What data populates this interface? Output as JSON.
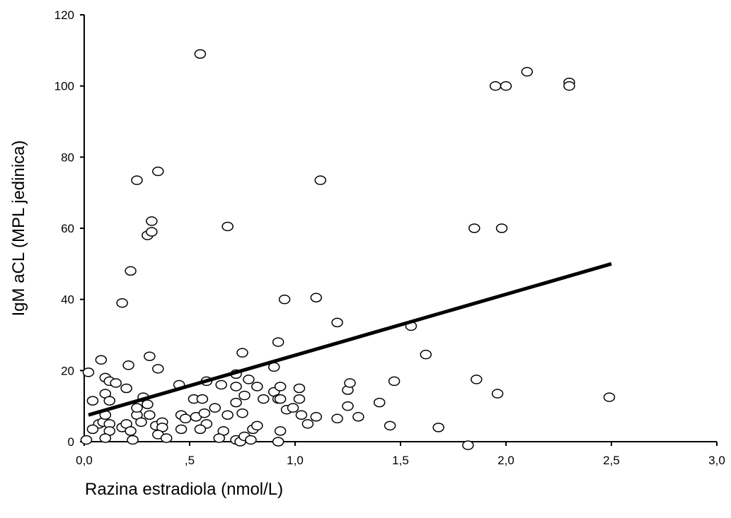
{
  "chart_data": {
    "type": "scatter",
    "title": "",
    "xlabel": "Razina estradiola (nmol/L)",
    "ylabel": "IgM aCL (MPL jedinica)",
    "xlim": [
      0,
      3
    ],
    "ylim": [
      0,
      120
    ],
    "grid": false,
    "x_ticks": [
      {
        "value": 0,
        "label": "0,0"
      },
      {
        "value": 0.5,
        "label": ",5"
      },
      {
        "value": 1.0,
        "label": "1,0"
      },
      {
        "value": 1.5,
        "label": "1,5"
      },
      {
        "value": 2.0,
        "label": "2,0"
      },
      {
        "value": 2.5,
        "label": "2,5"
      },
      {
        "value": 3.0,
        "label": "3,0"
      }
    ],
    "y_ticks": [
      {
        "value": 0,
        "label": "0"
      },
      {
        "value": 20,
        "label": "20"
      },
      {
        "value": 40,
        "label": "40"
      },
      {
        "value": 60,
        "label": "60"
      },
      {
        "value": 80,
        "label": "80"
      },
      {
        "value": 100,
        "label": "100"
      },
      {
        "value": 120,
        "label": "120"
      }
    ],
    "fit_line": {
      "x": [
        0.02,
        2.5
      ],
      "y": [
        7.5,
        50
      ]
    },
    "points": [
      [
        0.55,
        109
      ],
      [
        2.1,
        104
      ],
      [
        2.3,
        101
      ],
      [
        2.3,
        100
      ],
      [
        1.95,
        100
      ],
      [
        2.0,
        100
      ],
      [
        0.25,
        73.5
      ],
      [
        0.35,
        76
      ],
      [
        1.12,
        73.5
      ],
      [
        0.3,
        58
      ],
      [
        0.32,
        59
      ],
      [
        0.32,
        62
      ],
      [
        0.68,
        60.5
      ],
      [
        1.85,
        60
      ],
      [
        1.98,
        60
      ],
      [
        0.22,
        48
      ],
      [
        0.18,
        39
      ],
      [
        0.95,
        40
      ],
      [
        1.1,
        40.5
      ],
      [
        1.2,
        33.5
      ],
      [
        1.55,
        32.5
      ],
      [
        0.92,
        28
      ],
      [
        0.75,
        25
      ],
      [
        1.62,
        24.5
      ],
      [
        0.08,
        23
      ],
      [
        0.31,
        24
      ],
      [
        0.21,
        21.5
      ],
      [
        0.35,
        20.5
      ],
      [
        0.9,
        21
      ],
      [
        0.02,
        19.5
      ],
      [
        0.72,
        19
      ],
      [
        0.1,
        18
      ],
      [
        0.12,
        17
      ],
      [
        0.15,
        16.5
      ],
      [
        0.2,
        15
      ],
      [
        0.1,
        13.5
      ],
      [
        0.04,
        11.5
      ],
      [
        0.12,
        11.5
      ],
      [
        0.28,
        12.5
      ],
      [
        0.3,
        10.5
      ],
      [
        0.45,
        16
      ],
      [
        0.52,
        12
      ],
      [
        0.56,
        12
      ],
      [
        0.58,
        17
      ],
      [
        0.65,
        16
      ],
      [
        0.72,
        15.5
      ],
      [
        0.78,
        17.5
      ],
      [
        0.82,
        15.5
      ],
      [
        0.85,
        12
      ],
      [
        0.9,
        14
      ],
      [
        0.92,
        12
      ],
      [
        0.93,
        15.5
      ],
      [
        0.93,
        12
      ],
      [
        1.02,
        15
      ],
      [
        1.02,
        12
      ],
      [
        1.25,
        14.5
      ],
      [
        1.26,
        16.5
      ],
      [
        1.47,
        17
      ],
      [
        1.86,
        17.5
      ],
      [
        1.96,
        13.5
      ],
      [
        2.49,
        12.5
      ],
      [
        0.07,
        5
      ],
      [
        0.09,
        5.5
      ],
      [
        0.1,
        7.5
      ],
      [
        0.12,
        5
      ],
      [
        0.12,
        3
      ],
      [
        0.18,
        4
      ],
      [
        0.2,
        5
      ],
      [
        0.22,
        3
      ],
      [
        0.25,
        7.5
      ],
      [
        0.25,
        9.5
      ],
      [
        0.27,
        5.5
      ],
      [
        0.31,
        7.5
      ],
      [
        0.34,
        4.5
      ],
      [
        0.37,
        5.5
      ],
      [
        0.37,
        4
      ],
      [
        0.46,
        7.5
      ],
      [
        0.48,
        6.5
      ],
      [
        0.53,
        7
      ],
      [
        0.57,
        8
      ],
      [
        0.58,
        5
      ],
      [
        0.62,
        9.5
      ],
      [
        0.66,
        3
      ],
      [
        0.68,
        7.5
      ],
      [
        0.72,
        11
      ],
      [
        0.75,
        8
      ],
      [
        0.76,
        13
      ],
      [
        0.8,
        3.5
      ],
      [
        0.82,
        4.5
      ],
      [
        0.96,
        9
      ],
      [
        0.99,
        9.5
      ],
      [
        1.03,
        7.5
      ],
      [
        1.06,
        5
      ],
      [
        1.1,
        7
      ],
      [
        1.2,
        6.5
      ],
      [
        1.25,
        10
      ],
      [
        1.3,
        7
      ],
      [
        1.4,
        11
      ],
      [
        1.45,
        4.5
      ],
      [
        1.68,
        4
      ],
      [
        0.01,
        0.5
      ],
      [
        0.04,
        3.5
      ],
      [
        0.1,
        1
      ],
      [
        0.23,
        0.5
      ],
      [
        0.35,
        2
      ],
      [
        0.39,
        1
      ],
      [
        0.46,
        3.5
      ],
      [
        0.55,
        3.5
      ],
      [
        0.64,
        1
      ],
      [
        0.72,
        0.5
      ],
      [
        0.74,
        0
      ],
      [
        0.76,
        1.5
      ],
      [
        0.79,
        0.5
      ],
      [
        0.92,
        0
      ],
      [
        0.93,
        3
      ],
      [
        1.82,
        -1
      ]
    ]
  }
}
